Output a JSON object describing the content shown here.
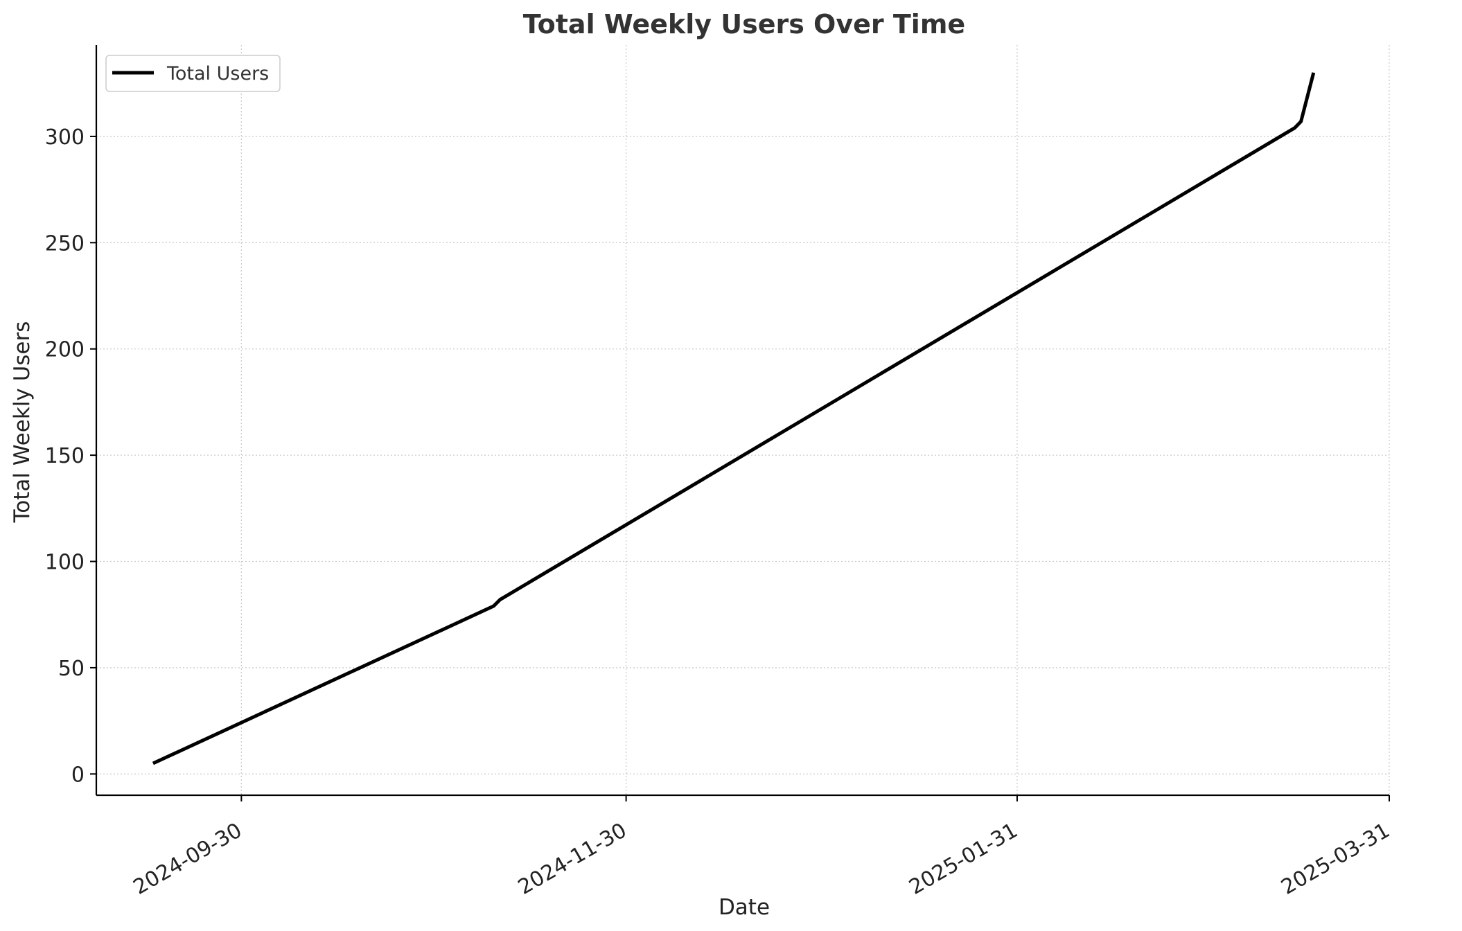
{
  "chart_data": {
    "type": "line",
    "title": "Total Weekly Users Over Time",
    "xlabel": "Date",
    "ylabel": "Total Weekly Users",
    "xlim": [
      "2024-09-07",
      "2025-03-31"
    ],
    "ylim": [
      -10,
      343
    ],
    "x_ticks": [
      "2024-09-30",
      "2024-11-30",
      "2025-01-31",
      "2025-03-31"
    ],
    "y_ticks": [
      0,
      50,
      100,
      150,
      200,
      250,
      300
    ],
    "grid": true,
    "legend_position": "top-left",
    "series": [
      {
        "name": "Total Users",
        "color": "#000000",
        "x": [
          "2024-09-16",
          "2024-11-09",
          "2024-11-10",
          "2025-03-16",
          "2025-03-17",
          "2025-03-19"
        ],
        "y": [
          5,
          79,
          82,
          304,
          307,
          330
        ]
      }
    ]
  }
}
